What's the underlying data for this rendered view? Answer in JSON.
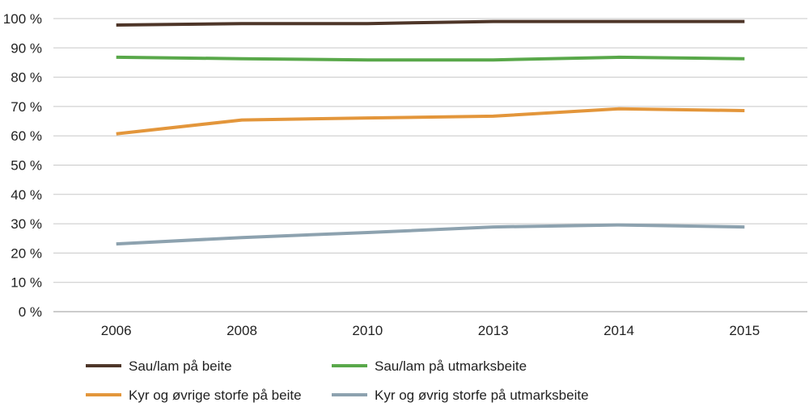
{
  "chart_data": {
    "type": "line",
    "categories": [
      "2006",
      "2008",
      "2010",
      "2013",
      "2014",
      "2015"
    ],
    "ylim": [
      0,
      100
    ],
    "yticks": [
      0,
      10,
      20,
      30,
      40,
      50,
      60,
      70,
      80,
      90,
      100
    ],
    "ytick_labels": [
      "0 %",
      "10 %",
      "20 %",
      "30 %",
      "40 %",
      "50 %",
      "60 %",
      "70 %",
      "80 %",
      "90 %",
      "100 %"
    ],
    "grid": "horizontal",
    "legend_position": "bottom",
    "series": [
      {
        "name": "Sau/lam på beite",
        "color": "#4e3629",
        "values": [
          97.8,
          98.3,
          98.3,
          99.0,
          99.0,
          99.0
        ]
      },
      {
        "name": "Sau/lam på utmarksbeite",
        "color": "#59a84a",
        "values": [
          86.8,
          86.3,
          85.9,
          85.9,
          86.8,
          86.3
        ]
      },
      {
        "name": "Kyr og øvrige storfe på beite",
        "color": "#e3963b",
        "values": [
          60.7,
          65.4,
          66.1,
          66.7,
          69.2,
          68.6
        ]
      },
      {
        "name": "Kyr og øvrig storfe på utmarksbeite",
        "color": "#8da2af",
        "values": [
          23.1,
          25.3,
          27.0,
          28.9,
          29.6,
          28.9
        ]
      }
    ]
  }
}
